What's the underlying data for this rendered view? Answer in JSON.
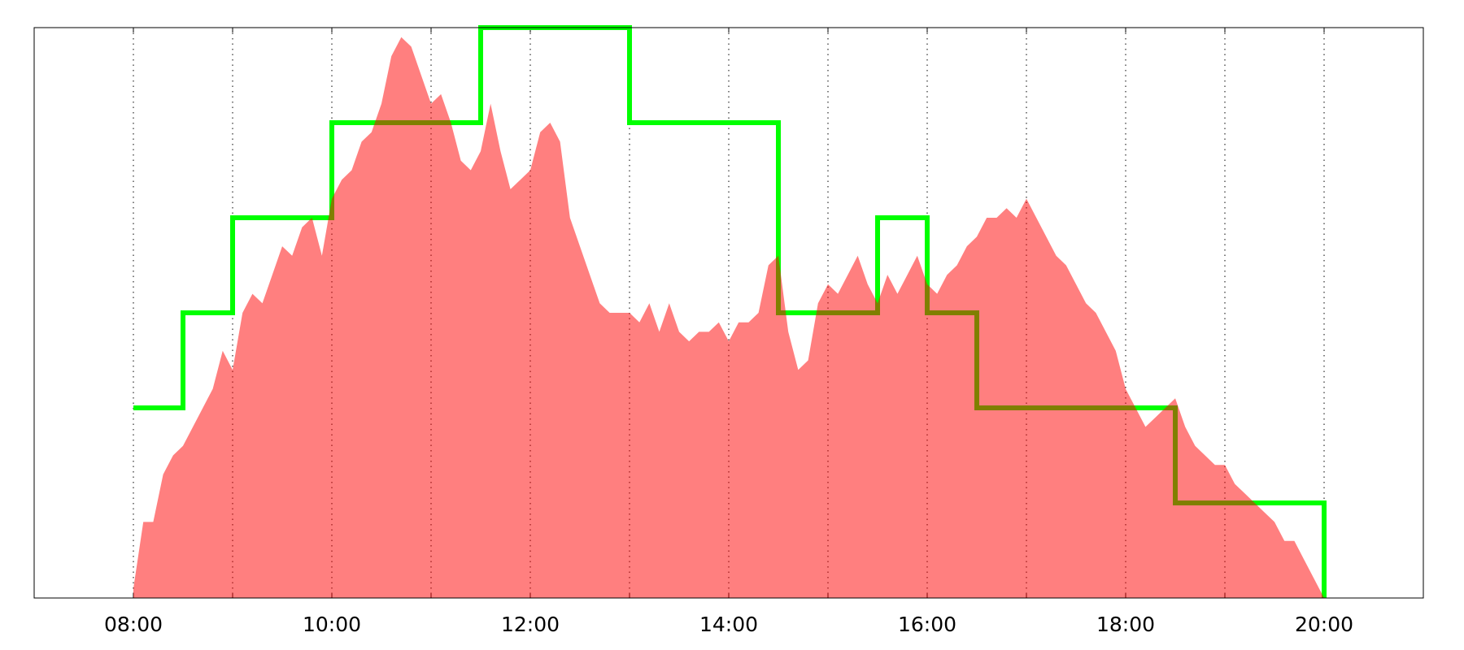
{
  "chart_data": {
    "type": "area_step",
    "xlim": [
      7,
      21
    ],
    "ylim": [
      0,
      6
    ],
    "xticks": [
      {
        "value": 8,
        "label": "08:00"
      },
      {
        "value": 10,
        "label": "10:00"
      },
      {
        "value": 12,
        "label": "12:00"
      },
      {
        "value": 14,
        "label": "14:00"
      },
      {
        "value": 16,
        "label": "16:00"
      },
      {
        "value": 18,
        "label": "18:00"
      },
      {
        "value": 20,
        "label": "20:00"
      }
    ],
    "minor_xticks": [
      9,
      11,
      13,
      15,
      17,
      19
    ],
    "grid": true,
    "area": {
      "color": "#ff0000",
      "alpha": 0.5,
      "x": [
        8.0,
        8.1,
        8.2,
        8.3,
        8.4,
        8.5,
        8.6,
        8.7,
        8.8,
        8.9,
        9.0,
        9.1,
        9.2,
        9.3,
        9.4,
        9.5,
        9.6,
        9.7,
        9.8,
        9.9,
        10.0,
        10.1,
        10.2,
        10.3,
        10.4,
        10.5,
        10.6,
        10.7,
        10.8,
        10.9,
        11.0,
        11.1,
        11.2,
        11.3,
        11.4,
        11.5,
        11.6,
        11.7,
        11.8,
        11.9,
        12.0,
        12.1,
        12.2,
        12.3,
        12.4,
        12.5,
        12.6,
        12.7,
        12.8,
        12.9,
        13.0,
        13.1,
        13.2,
        13.3,
        13.4,
        13.5,
        13.6,
        13.7,
        13.8,
        13.9,
        14.0,
        14.1,
        14.2,
        14.3,
        14.4,
        14.5,
        14.6,
        14.7,
        14.8,
        14.9,
        15.0,
        15.1,
        15.2,
        15.3,
        15.4,
        15.5,
        15.6,
        15.7,
        15.8,
        15.9,
        16.0,
        16.1,
        16.2,
        16.3,
        16.4,
        16.5,
        16.6,
        16.7,
        16.8,
        16.9,
        17.0,
        17.1,
        17.2,
        17.3,
        17.4,
        17.5,
        17.6,
        17.7,
        17.8,
        17.9,
        18.0,
        18.1,
        18.2,
        18.3,
        18.4,
        18.5,
        18.6,
        18.7,
        18.8,
        18.9,
        19.0,
        19.1,
        19.2,
        19.3,
        19.4,
        19.5,
        19.6,
        19.7,
        19.8,
        19.9,
        20.0
      ],
      "values": [
        0.1,
        0.8,
        0.8,
        1.3,
        1.5,
        1.6,
        1.8,
        2.0,
        2.2,
        2.6,
        2.4,
        3.0,
        3.2,
        3.1,
        3.4,
        3.7,
        3.6,
        3.9,
        4.0,
        3.6,
        4.2,
        4.4,
        4.5,
        4.8,
        4.9,
        5.2,
        5.7,
        5.9,
        5.8,
        5.5,
        5.2,
        5.3,
        5.0,
        4.6,
        4.5,
        4.7,
        5.2,
        4.7,
        4.3,
        4.4,
        4.5,
        4.9,
        5.0,
        4.8,
        4.0,
        3.7,
        3.4,
        3.1,
        3.0,
        3.0,
        3.0,
        2.9,
        3.1,
        2.8,
        3.1,
        2.8,
        2.7,
        2.8,
        2.8,
        2.9,
        2.7,
        2.9,
        2.9,
        3.0,
        3.5,
        3.6,
        2.8,
        2.4,
        2.5,
        3.1,
        3.3,
        3.2,
        3.4,
        3.6,
        3.3,
        3.1,
        3.4,
        3.2,
        3.4,
        3.6,
        3.3,
        3.2,
        3.4,
        3.5,
        3.7,
        3.8,
        4.0,
        4.0,
        4.1,
        4.0,
        4.2,
        4.0,
        3.8,
        3.6,
        3.5,
        3.3,
        3.1,
        3.0,
        2.8,
        2.6,
        2.2,
        2.0,
        1.8,
        1.9,
        2.0,
        2.1,
        1.8,
        1.6,
        1.5,
        1.4,
        1.4,
        1.2,
        1.1,
        1.0,
        0.9,
        0.8,
        0.6,
        0.6,
        0.4,
        0.2,
        0
      ]
    },
    "step": {
      "color": "#00ff00",
      "x": [
        8,
        8.5,
        9,
        10,
        11.5,
        13,
        14.5,
        15.5,
        16,
        16.5,
        18.5,
        20
      ],
      "values": [
        2,
        3,
        4,
        5,
        6,
        5,
        3,
        4,
        3,
        2,
        1,
        0
      ]
    }
  }
}
